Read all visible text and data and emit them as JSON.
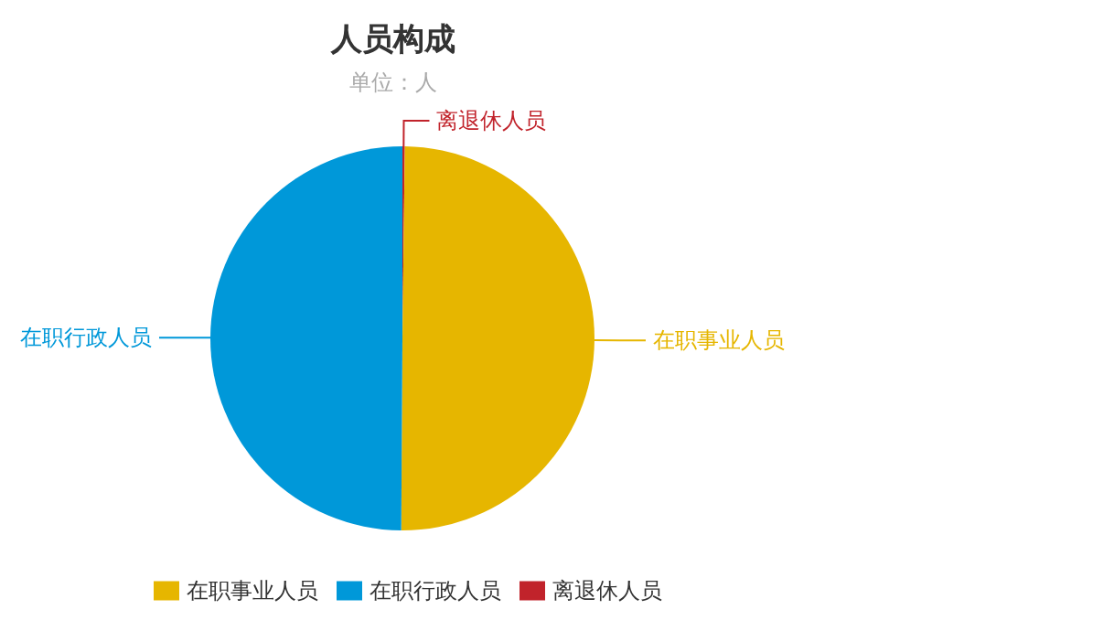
{
  "chart_data": {
    "type": "pie",
    "title": "人员构成",
    "subtitle": "单位：人",
    "categories": [
      "离退休人员",
      "在职事业人员",
      "在职行政人员"
    ],
    "values": [
      0.2,
      49.9,
      49.9
    ],
    "colors": [
      "#c1232b",
      "#e6b600",
      "#0098d9"
    ],
    "legend": "bottom"
  }
}
